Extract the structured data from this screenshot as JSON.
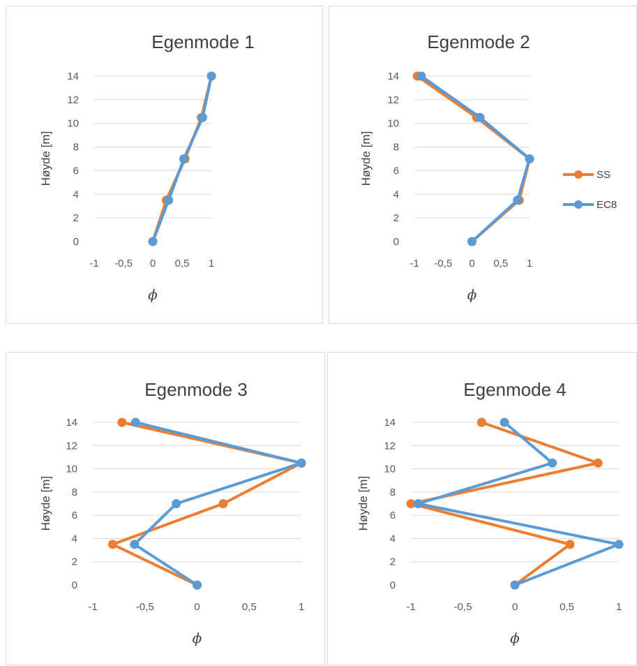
{
  "colors": {
    "SS": "#ed7d31",
    "EC8": "#5b9bd5",
    "grid": "#d9d9d9",
    "text": "#595959"
  },
  "legend": [
    {
      "name": "SS"
    },
    {
      "name": "EC8"
    }
  ],
  "chart_data": [
    {
      "type": "line",
      "title": "Egenmode 1",
      "xlabel": "ϕ",
      "ylabel": "Høyde [m]",
      "xlim": [
        -1,
        1
      ],
      "ylim": [
        0,
        14
      ],
      "xticks": [
        "-1",
        "-0,5",
        "0",
        "0,5",
        "1"
      ],
      "yticks": [
        "0",
        "2",
        "4",
        "6",
        "8",
        "10",
        "12",
        "14"
      ],
      "grid": "horizontal",
      "series": [
        {
          "name": "SS",
          "points": [
            [
              0,
              0
            ],
            [
              0.23,
              3.5
            ],
            [
              0.55,
              7
            ],
            [
              0.83,
              10.5
            ],
            [
              1,
              14
            ]
          ]
        },
        {
          "name": "EC8",
          "points": [
            [
              0,
              0
            ],
            [
              0.27,
              3.5
            ],
            [
              0.53,
              7
            ],
            [
              0.85,
              10.5
            ],
            [
              1,
              14
            ]
          ]
        }
      ]
    },
    {
      "type": "line",
      "title": "Egenmode 2",
      "xlabel": "ϕ",
      "ylabel": "Høyde [m]",
      "xlim": [
        -1,
        1
      ],
      "ylim": [
        0,
        14
      ],
      "xticks": [
        "-1",
        "-0,5",
        "0",
        "0,5",
        "1"
      ],
      "yticks": [
        "0",
        "2",
        "4",
        "6",
        "8",
        "10",
        "12",
        "14"
      ],
      "grid": "horizontal",
      "legend": "right",
      "series": [
        {
          "name": "SS",
          "points": [
            [
              0,
              0
            ],
            [
              0.82,
              3.5
            ],
            [
              1,
              7
            ],
            [
              0.08,
              10.5
            ],
            [
              -0.95,
              14
            ]
          ]
        },
        {
          "name": "EC8",
          "points": [
            [
              0,
              0
            ],
            [
              0.79,
              3.5
            ],
            [
              1,
              7
            ],
            [
              0.14,
              10.5
            ],
            [
              -0.88,
              14
            ]
          ]
        }
      ]
    },
    {
      "type": "line",
      "title": "Egenmode 3",
      "xlabel": "ϕ",
      "ylabel": "Høyde [m]",
      "xlim": [
        -1,
        1
      ],
      "ylim": [
        0,
        14
      ],
      "xticks": [
        "-1",
        "-0,5",
        "0",
        "0,5",
        "1"
      ],
      "yticks": [
        "0",
        "2",
        "4",
        "6",
        "8",
        "10",
        "12",
        "14"
      ],
      "grid": "horizontal",
      "series": [
        {
          "name": "SS",
          "points": [
            [
              0,
              0
            ],
            [
              -0.81,
              3.5
            ],
            [
              0.25,
              7
            ],
            [
              1,
              10.5
            ],
            [
              -0.72,
              14
            ]
          ]
        },
        {
          "name": "EC8",
          "points": [
            [
              0,
              0
            ],
            [
              -0.6,
              3.5
            ],
            [
              -0.2,
              7
            ],
            [
              1,
              10.5
            ],
            [
              -0.59,
              14
            ]
          ]
        }
      ]
    },
    {
      "type": "line",
      "title": "Egenmode 4",
      "xlabel": "ϕ",
      "ylabel": "Høyde [m]",
      "xlim": [
        -1,
        1
      ],
      "ylim": [
        0,
        14
      ],
      "xticks": [
        "-1",
        "-0,5",
        "0",
        "0,5",
        "1"
      ],
      "yticks": [
        "0",
        "2",
        "4",
        "6",
        "8",
        "10",
        "12",
        "14"
      ],
      "grid": "horizontal",
      "series": [
        {
          "name": "SS",
          "points": [
            [
              0,
              0
            ],
            [
              0.53,
              3.5
            ],
            [
              -1,
              7
            ],
            [
              0.8,
              10.5
            ],
            [
              -0.32,
              14
            ]
          ]
        },
        {
          "name": "EC8",
          "points": [
            [
              0,
              0
            ],
            [
              1,
              3.5
            ],
            [
              -0.93,
              7
            ],
            [
              0.36,
              10.5
            ],
            [
              -0.1,
              14
            ]
          ]
        }
      ]
    }
  ]
}
